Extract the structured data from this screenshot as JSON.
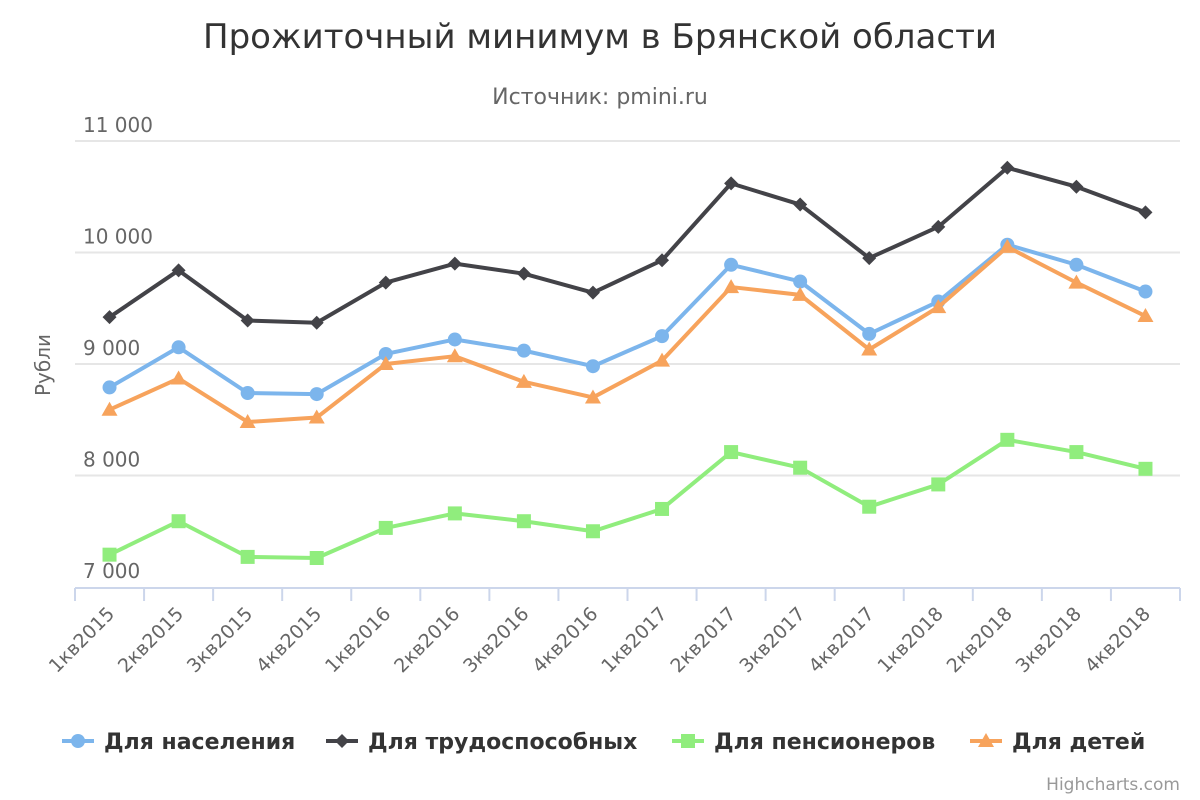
{
  "chart_data": {
    "type": "line",
    "title": "Прожиточный минимум в Брянской области",
    "subtitle": "Источник: pmini.ru",
    "ylabel": "Рубли",
    "ylim": [
      7000,
      11000
    ],
    "yticks": [
      7000,
      8000,
      9000,
      10000,
      11000
    ],
    "ytick_labels": [
      "7 000",
      "8 000",
      "9 000",
      "10 000",
      "11 000"
    ],
    "categories": [
      "1кв2015",
      "2кв2015",
      "3кв2015",
      "4кв2015",
      "1кв2016",
      "2кв2016",
      "3кв2016",
      "4кв2016",
      "1кв2017",
      "2кв2017",
      "3кв2017",
      "4кв2017",
      "1кв2018",
      "2кв2018",
      "3кв2018",
      "4кв2018"
    ],
    "series": [
      {
        "name": "Для населения",
        "color": "#7cb5ec",
        "marker": "circle",
        "values": [
          8790,
          9150,
          8740,
          8730,
          9090,
          9220,
          9120,
          8980,
          9250,
          9890,
          9740,
          9270,
          9560,
          10070,
          9890,
          9650
        ]
      },
      {
        "name": "Для трудоспособных",
        "color": "#434348",
        "marker": "diamond",
        "values": [
          9420,
          9840,
          9390,
          9370,
          9730,
          9900,
          9810,
          9640,
          9930,
          10620,
          10430,
          9950,
          10230,
          10760,
          10590,
          10360
        ]
      },
      {
        "name": "Для пенсионеров",
        "color": "#90ed7d",
        "marker": "square",
        "values": [
          7290,
          7590,
          7270,
          7260,
          7530,
          7660,
          7590,
          7500,
          7700,
          8210,
          8070,
          7720,
          7920,
          8320,
          8210,
          8060
        ]
      },
      {
        "name": "Для детей",
        "color": "#f7a35c",
        "marker": "triangle",
        "values": [
          8590,
          8870,
          8480,
          8520,
          9000,
          9070,
          8840,
          8700,
          9030,
          9690,
          9620,
          9130,
          9510,
          10050,
          9730,
          9430
        ]
      }
    ],
    "grid": true,
    "legend_position": "bottom"
  },
  "credits": "Highcharts.com"
}
